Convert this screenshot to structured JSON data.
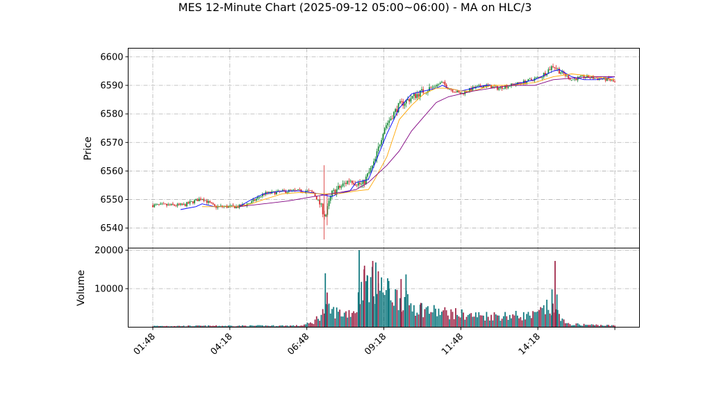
{
  "chart_data": {
    "type": "candlestick",
    "title": "MES 12-Minute Chart (2025-09-12 05:00~06:00) - MA on HLC/3",
    "price_panel": {
      "ylabel": "Price",
      "ylim": [
        6533,
        6603
      ],
      "yticks": [
        6540,
        6550,
        6560,
        6570,
        6580,
        6590,
        6600
      ],
      "grid": true
    },
    "volume_panel": {
      "ylabel": "Volume",
      "ylim": [
        0,
        20000
      ],
      "yticks": [
        10000,
        20000
      ],
      "grid": true
    },
    "xtick_labels": [
      "01:48",
      "04:18",
      "06:48",
      "09:18",
      "11:48",
      "14:18"
    ],
    "xtick_positions": [
      0,
      12.5,
      25,
      37.5,
      50,
      62.5
    ],
    "xlim": [
      -4,
      79
    ],
    "ma_colors": [
      "#0000ff",
      "#ffa500",
      "#800080"
    ],
    "up_color": "#1a8a3a",
    "down_color": "#d62728",
    "vol_up_color": "#127a80",
    "vol_down_color": "#a0284a",
    "price_anchors": [
      [
        0,
        6548
      ],
      [
        5,
        6548
      ],
      [
        8,
        6550.5
      ],
      [
        10,
        6547.5
      ],
      [
        14,
        6547.5
      ],
      [
        16,
        6549
      ],
      [
        18,
        6552
      ],
      [
        22,
        6553
      ],
      [
        25,
        6553
      ],
      [
        26,
        6552.5
      ],
      [
        27,
        6549
      ],
      [
        28,
        6544
      ],
      [
        29,
        6552
      ],
      [
        32,
        6557
      ],
      [
        34,
        6555
      ],
      [
        36,
        6563
      ],
      [
        37.5,
        6575
      ],
      [
        40,
        6583
      ],
      [
        43,
        6587
      ],
      [
        45,
        6589
      ],
      [
        47,
        6591
      ],
      [
        48,
        6589
      ],
      [
        50,
        6587
      ],
      [
        52,
        6589
      ],
      [
        54,
        6590
      ],
      [
        56,
        6589
      ],
      [
        60,
        6591
      ],
      [
        63,
        6593
      ],
      [
        65,
        6597
      ],
      [
        66,
        6595
      ],
      [
        68,
        6592
      ],
      [
        70,
        6593
      ],
      [
        72,
        6592.5
      ],
      [
        74,
        6592
      ],
      [
        75,
        6591
      ]
    ],
    "ma_series": [
      {
        "color": "#0000ff",
        "points": [
          [
            4.5,
            6546.5
          ],
          [
            7,
            6547.5
          ],
          [
            8,
            6548.5
          ],
          [
            10,
            6547.5
          ],
          [
            14,
            6547.5
          ],
          [
            16,
            6550
          ],
          [
            18,
            6552
          ],
          [
            21,
            6553
          ],
          [
            24,
            6553
          ],
          [
            27,
            6552
          ],
          [
            29,
            6551
          ],
          [
            30,
            6552
          ],
          [
            32,
            6553
          ],
          [
            33,
            6556
          ],
          [
            35,
            6557
          ],
          [
            38,
            6573
          ],
          [
            40,
            6582
          ],
          [
            42,
            6587
          ],
          [
            44,
            6588
          ],
          [
            46,
            6589
          ],
          [
            47,
            6590
          ],
          [
            48,
            6589
          ],
          [
            50,
            6588
          ],
          [
            52,
            6589
          ],
          [
            54,
            6590
          ],
          [
            58,
            6590
          ],
          [
            62,
            6592
          ],
          [
            65,
            6595
          ],
          [
            66,
            6595.5
          ],
          [
            68,
            6593
          ],
          [
            70,
            6592
          ],
          [
            72,
            6592
          ],
          [
            75,
            6593
          ]
        ]
      },
      {
        "color": "#ffa500",
        "points": [
          [
            8,
            6547.5
          ],
          [
            10,
            6547.5
          ],
          [
            14,
            6547.5
          ],
          [
            16,
            6548.5
          ],
          [
            18,
            6550
          ],
          [
            21,
            6552
          ],
          [
            24,
            6552.5
          ],
          [
            27,
            6552
          ],
          [
            30,
            6552
          ],
          [
            33,
            6553
          ],
          [
            35,
            6553.5
          ],
          [
            36,
            6557
          ],
          [
            38,
            6565
          ],
          [
            40,
            6578
          ],
          [
            42,
            6583
          ],
          [
            44,
            6587
          ],
          [
            46,
            6589
          ],
          [
            48,
            6589
          ],
          [
            50,
            6588
          ],
          [
            52,
            6588
          ],
          [
            55,
            6590
          ],
          [
            58,
            6590
          ],
          [
            62,
            6591
          ],
          [
            65,
            6593
          ],
          [
            68,
            6594
          ],
          [
            72,
            6593
          ],
          [
            75,
            6592
          ]
        ]
      },
      {
        "color": "#800080",
        "points": [
          [
            14,
            6547.5
          ],
          [
            18,
            6548.5
          ],
          [
            22,
            6549.5
          ],
          [
            26,
            6551
          ],
          [
            29,
            6552
          ],
          [
            33,
            6553.5
          ],
          [
            35,
            6556
          ],
          [
            38,
            6562
          ],
          [
            40,
            6567
          ],
          [
            42,
            6574
          ],
          [
            44,
            6579
          ],
          [
            46,
            6584
          ],
          [
            48,
            6586
          ],
          [
            50,
            6587
          ],
          [
            52,
            6588
          ],
          [
            55,
            6589
          ],
          [
            58,
            6590
          ],
          [
            62,
            6590
          ],
          [
            65,
            6592
          ],
          [
            68,
            6592.5
          ],
          [
            72,
            6593
          ],
          [
            75,
            6593
          ]
        ]
      }
    ],
    "volume_anchors": [
      [
        0,
        300
      ],
      [
        24,
        400
      ],
      [
        26,
        1200
      ],
      [
        28,
        4500
      ],
      [
        31,
        3500
      ],
      [
        33,
        4500
      ],
      [
        34,
        12000
      ],
      [
        37,
        10000
      ],
      [
        40,
        7500
      ],
      [
        43,
        5000
      ],
      [
        46,
        4000
      ],
      [
        52,
        3000
      ],
      [
        58,
        3000
      ],
      [
        62,
        3000
      ],
      [
        64,
        5000
      ],
      [
        66,
        3500
      ],
      [
        67,
        800
      ],
      [
        75,
        400
      ]
    ],
    "volume_spikes": [
      [
        28,
        14000
      ],
      [
        28.3,
        9000
      ],
      [
        33.5,
        20000
      ],
      [
        34.3,
        15000
      ],
      [
        34.8,
        13500
      ],
      [
        35.7,
        17200
      ],
      [
        36.2,
        16800
      ],
      [
        36.6,
        14500
      ],
      [
        38.3,
        12000
      ],
      [
        40.3,
        12500
      ],
      [
        41.1,
        13700
      ],
      [
        43.5,
        6300
      ],
      [
        64.8,
        9800
      ],
      [
        65.3,
        17200
      ],
      [
        65.6,
        8500
      ]
    ]
  }
}
